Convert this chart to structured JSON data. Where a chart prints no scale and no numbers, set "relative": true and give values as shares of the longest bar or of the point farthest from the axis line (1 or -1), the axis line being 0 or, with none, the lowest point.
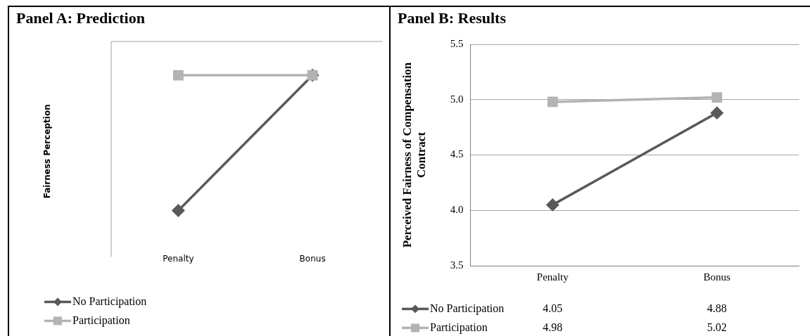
{
  "chart_data": [
    {
      "type": "line",
      "title": "Panel A: Prediction",
      "ylabel": "Fairness Perception",
      "categories": [
        "Penalty",
        "Bonus"
      ],
      "relative": true,
      "legend": "bottom",
      "grid": false,
      "series": [
        {
          "name": "No Participation",
          "color": "#595959",
          "marker": "diamond",
          "values": [
            0,
            1
          ]
        },
        {
          "name": "Participation",
          "color": "#b3b3b3",
          "marker": "square",
          "values": [
            1,
            1
          ]
        }
      ]
    },
    {
      "type": "line",
      "title": "Panel B: Results",
      "ylabel": "Perceived Fairness of Compensation Contract",
      "categories": [
        "Penalty",
        "Bonus"
      ],
      "ylim": [
        3.5,
        5.5
      ],
      "yticks": [
        {
          "value": 3.5,
          "label": "3.5"
        },
        {
          "value": 4,
          "label": "4.0"
        },
        {
          "value": 4.5,
          "label": "4.5"
        },
        {
          "value": 5,
          "label": "5.0"
        },
        {
          "value": 5.5,
          "label": "5.5"
        }
      ],
      "grid": "y",
      "legend": "bottom",
      "data_labels": true,
      "series": [
        {
          "name": "No Participation",
          "color": "#595959",
          "marker": "diamond",
          "values": [
            4.05,
            4.88
          ]
        },
        {
          "name": "Participation",
          "color": "#b3b3b3",
          "marker": "square",
          "values": [
            4.98,
            5.02
          ]
        }
      ]
    }
  ]
}
